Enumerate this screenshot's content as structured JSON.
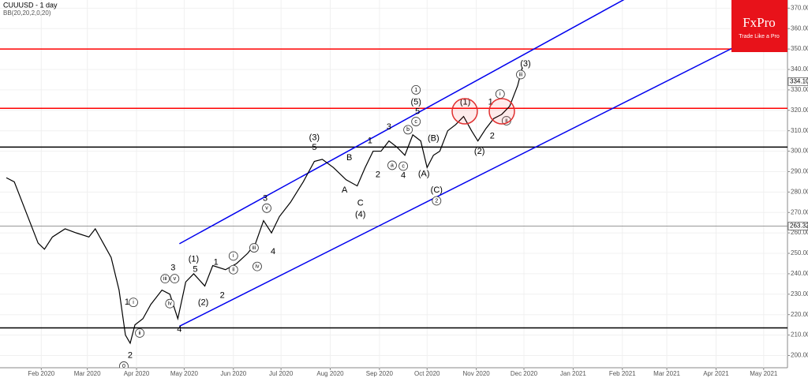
{
  "chart_data": {
    "type": "line",
    "title": "CUUUSD - 1 day",
    "subtitle": "BB(20,20,2,0,20)",
    "logo": {
      "brand": "FxPro",
      "tagline": "Trade Like a Pro"
    },
    "x": [
      9,
      14,
      19,
      24,
      29,
      33,
      38,
      46,
      53,
      61,
      65,
      70,
      75,
      80,
      84,
      87,
      90,
      95,
      100,
      107,
      112,
      117,
      122,
      127,
      134,
      139,
      147,
      154,
      161,
      166,
      171,
      176,
      181,
      188,
      196,
      203,
      208,
      215,
      223,
      230,
      235,
      240,
      245,
      250,
      255,
      260,
      265,
      270,
      274,
      278,
      282,
      287,
      292,
      297,
      302,
      306,
      311,
      316,
      321,
      326,
      329,
      331,
      334
    ],
    "series": [
      {
        "color": "#000000",
        "values": [
          287,
          285,
          275,
          265,
          255,
          252,
          258,
          262,
          260,
          258,
          262,
          255,
          248,
          232,
          210,
          206,
          215,
          218,
          225,
          232,
          230,
          218,
          236,
          240,
          234,
          244,
          242,
          245,
          250,
          255,
          266,
          260,
          268,
          275,
          285,
          295,
          296,
          292,
          286,
          283,
          292,
          300,
          300,
          305,
          302,
          298,
          308,
          305,
          292,
          298,
          300,
          310,
          313,
          317,
          310,
          305,
          311,
          316,
          318,
          322,
          328,
          332,
          341
        ]
      }
    ],
    "xlim": [
      5,
      501
    ],
    "ylim": [
      194,
      374
    ],
    "xticks": [
      {
        "value": 31,
        "label": "Feb 2020"
      },
      {
        "value": 60,
        "label": "Mar 2020"
      },
      {
        "value": 91,
        "label": "Apr 2020"
      },
      {
        "value": 121,
        "label": "May 2020"
      },
      {
        "value": 152,
        "label": "Jun 2020"
      },
      {
        "value": 182,
        "label": "Jul 2020"
      },
      {
        "value": 213,
        "label": "Aug 2020"
      },
      {
        "value": 244,
        "label": "Sep 2020"
      },
      {
        "value": 274,
        "label": "Oct 2020"
      },
      {
        "value": 305,
        "label": "Nov 2020"
      },
      {
        "value": 335,
        "label": "Dec 2020"
      },
      {
        "value": 366,
        "label": "Jan 2021"
      },
      {
        "value": 397,
        "label": "Feb 2021"
      },
      {
        "value": 425,
        "label": "Mar 2021"
      },
      {
        "value": 456,
        "label": "Apr 2021"
      },
      {
        "value": 486,
        "label": "May 2021"
      }
    ],
    "yticks": [
      {
        "value": 200,
        "label": "200.00"
      },
      {
        "value": 210,
        "label": "210.00"
      },
      {
        "value": 220,
        "label": "220.00"
      },
      {
        "value": 230,
        "label": "230.00"
      },
      {
        "value": 240,
        "label": "240.00"
      },
      {
        "value": 250,
        "label": "250.00"
      },
      {
        "value": 260,
        "label": "260.00"
      },
      {
        "value": 270,
        "label": "270.00"
      },
      {
        "value": 280,
        "label": "280.00"
      },
      {
        "value": 290,
        "label": "290.00"
      },
      {
        "value": 300,
        "label": "300.00"
      },
      {
        "value": 310,
        "label": "310.00"
      },
      {
        "value": 320,
        "label": "320.00"
      },
      {
        "value": 330,
        "label": "330.00"
      },
      {
        "value": 340,
        "label": "340.00"
      },
      {
        "value": 350,
        "label": "350.00"
      },
      {
        "value": 360,
        "label": "360.00"
      },
      {
        "value": 370,
        "label": "370.00"
      }
    ],
    "grid": true,
    "levels": [
      {
        "value": 350,
        "color": "#ff0000"
      },
      {
        "value": 321,
        "color": "#ff0000"
      },
      {
        "value": 302,
        "color": "#000000"
      },
      {
        "value": 213.5,
        "color": "#000000"
      },
      {
        "value": 263.32,
        "color": "#888888"
      }
    ],
    "price_labels": [
      {
        "value": 334.1,
        "label": "334.10"
      },
      {
        "value": 263.32,
        "label": "263.32"
      }
    ],
    "channel_lines": [
      {
        "color": "#0000ee",
        "x": [
          118,
          402
        ],
        "y": [
          254.7,
          375.9
        ]
      },
      {
        "color": "#0000ee",
        "x": [
          118,
          501
        ],
        "y": [
          214.3,
          364
        ]
      }
    ],
    "annotations": [
      {
        "text": "0",
        "x": 83,
        "y": 194.8,
        "circled": true
      },
      {
        "text": "2",
        "x": 87,
        "y": 200,
        "circled": false
      },
      {
        "text": "1",
        "x": 85,
        "y": 226,
        "circled": false
      },
      {
        "text": "i",
        "x": 89,
        "y": 226,
        "circled": true
      },
      {
        "text": "ii",
        "x": 93,
        "y": 211,
        "circled": true
      },
      {
        "text": "iii",
        "x": 109,
        "y": 237.6,
        "circled": true
      },
      {
        "text": "iv",
        "x": 112,
        "y": 225.4,
        "circled": true
      },
      {
        "text": "v",
        "x": 115,
        "y": 237.6,
        "circled": true
      },
      {
        "text": "3",
        "x": 114,
        "y": 242.8,
        "circled": false
      },
      {
        "text": "4",
        "x": 118,
        "y": 212.7,
        "circled": false
      },
      {
        "text": "(1)",
        "x": 127,
        "y": 247,
        "circled": false
      },
      {
        "text": "5",
        "x": 128,
        "y": 242,
        "circled": false
      },
      {
        "text": "(2)",
        "x": 133,
        "y": 225.8,
        "circled": false
      },
      {
        "text": "1",
        "x": 141,
        "y": 245.6,
        "circled": false
      },
      {
        "text": "2",
        "x": 145,
        "y": 229.3,
        "circled": false
      },
      {
        "text": "i",
        "x": 152,
        "y": 248.7,
        "circled": true
      },
      {
        "text": "ii",
        "x": 152,
        "y": 242,
        "circled": true
      },
      {
        "text": "iii",
        "x": 165,
        "y": 252.7,
        "circled": true
      },
      {
        "text": "iv",
        "x": 167,
        "y": 243.6,
        "circled": true
      },
      {
        "text": "v",
        "x": 173,
        "y": 272.1,
        "circled": true
      },
      {
        "text": "3",
        "x": 172,
        "y": 276.9,
        "circled": false
      },
      {
        "text": "4",
        "x": 177,
        "y": 250.7,
        "circled": false
      },
      {
        "text": "(3)",
        "x": 203,
        "y": 306.6,
        "circled": false
      },
      {
        "text": "5",
        "x": 203,
        "y": 301.8,
        "circled": false
      },
      {
        "text": "B",
        "x": 225,
        "y": 296.7,
        "circled": false
      },
      {
        "text": "A",
        "x": 222,
        "y": 280.8,
        "circled": false
      },
      {
        "text": "C",
        "x": 232,
        "y": 274.5,
        "circled": false
      },
      {
        "text": "(4)",
        "x": 232,
        "y": 268.9,
        "circled": false
      },
      {
        "text": "1",
        "x": 238,
        "y": 305,
        "circled": false
      },
      {
        "text": "2",
        "x": 243,
        "y": 288.4,
        "circled": false
      },
      {
        "text": "3",
        "x": 250,
        "y": 311.7,
        "circled": false
      },
      {
        "text": "a",
        "x": 252,
        "y": 293.1,
        "circled": true
      },
      {
        "text": "b",
        "x": 262,
        "y": 310.5,
        "circled": true
      },
      {
        "text": "c",
        "x": 267,
        "y": 314.5,
        "circled": true
      },
      {
        "text": "4",
        "x": 259,
        "y": 288,
        "circled": false
      },
      {
        "text": "c",
        "x": 259,
        "y": 292.7,
        "circled": true
      },
      {
        "text": "1",
        "x": 267,
        "y": 330,
        "circled": true
      },
      {
        "text": "(5)",
        "x": 267,
        "y": 324,
        "circled": false
      },
      {
        "text": "5",
        "x": 268,
        "y": 319.3,
        "circled": false
      },
      {
        "text": "(B)",
        "x": 278,
        "y": 306.2,
        "circled": false
      },
      {
        "text": "(A)",
        "x": 272,
        "y": 288.7,
        "circled": false
      },
      {
        "text": "(C)",
        "x": 280,
        "y": 280.8,
        "circled": false
      },
      {
        "text": "2",
        "x": 280,
        "y": 275.7,
        "circled": true
      },
      {
        "text": "(1)",
        "x": 298,
        "y": 324,
        "circled": false
      },
      {
        "text": "(2)",
        "x": 307,
        "y": 299.8,
        "circled": false
      },
      {
        "text": "1",
        "x": 314,
        "y": 324,
        "circled": false
      },
      {
        "text": "2",
        "x": 315,
        "y": 307.4,
        "circled": false
      },
      {
        "text": "i",
        "x": 320,
        "y": 328,
        "circled": true
      },
      {
        "text": "ii",
        "x": 324,
        "y": 314.9,
        "circled": true
      },
      {
        "text": "iii",
        "x": 333,
        "y": 337.5,
        "circled": true
      },
      {
        "text": "(3)",
        "x": 336,
        "y": 342.6,
        "circled": false
      }
    ]
  }
}
